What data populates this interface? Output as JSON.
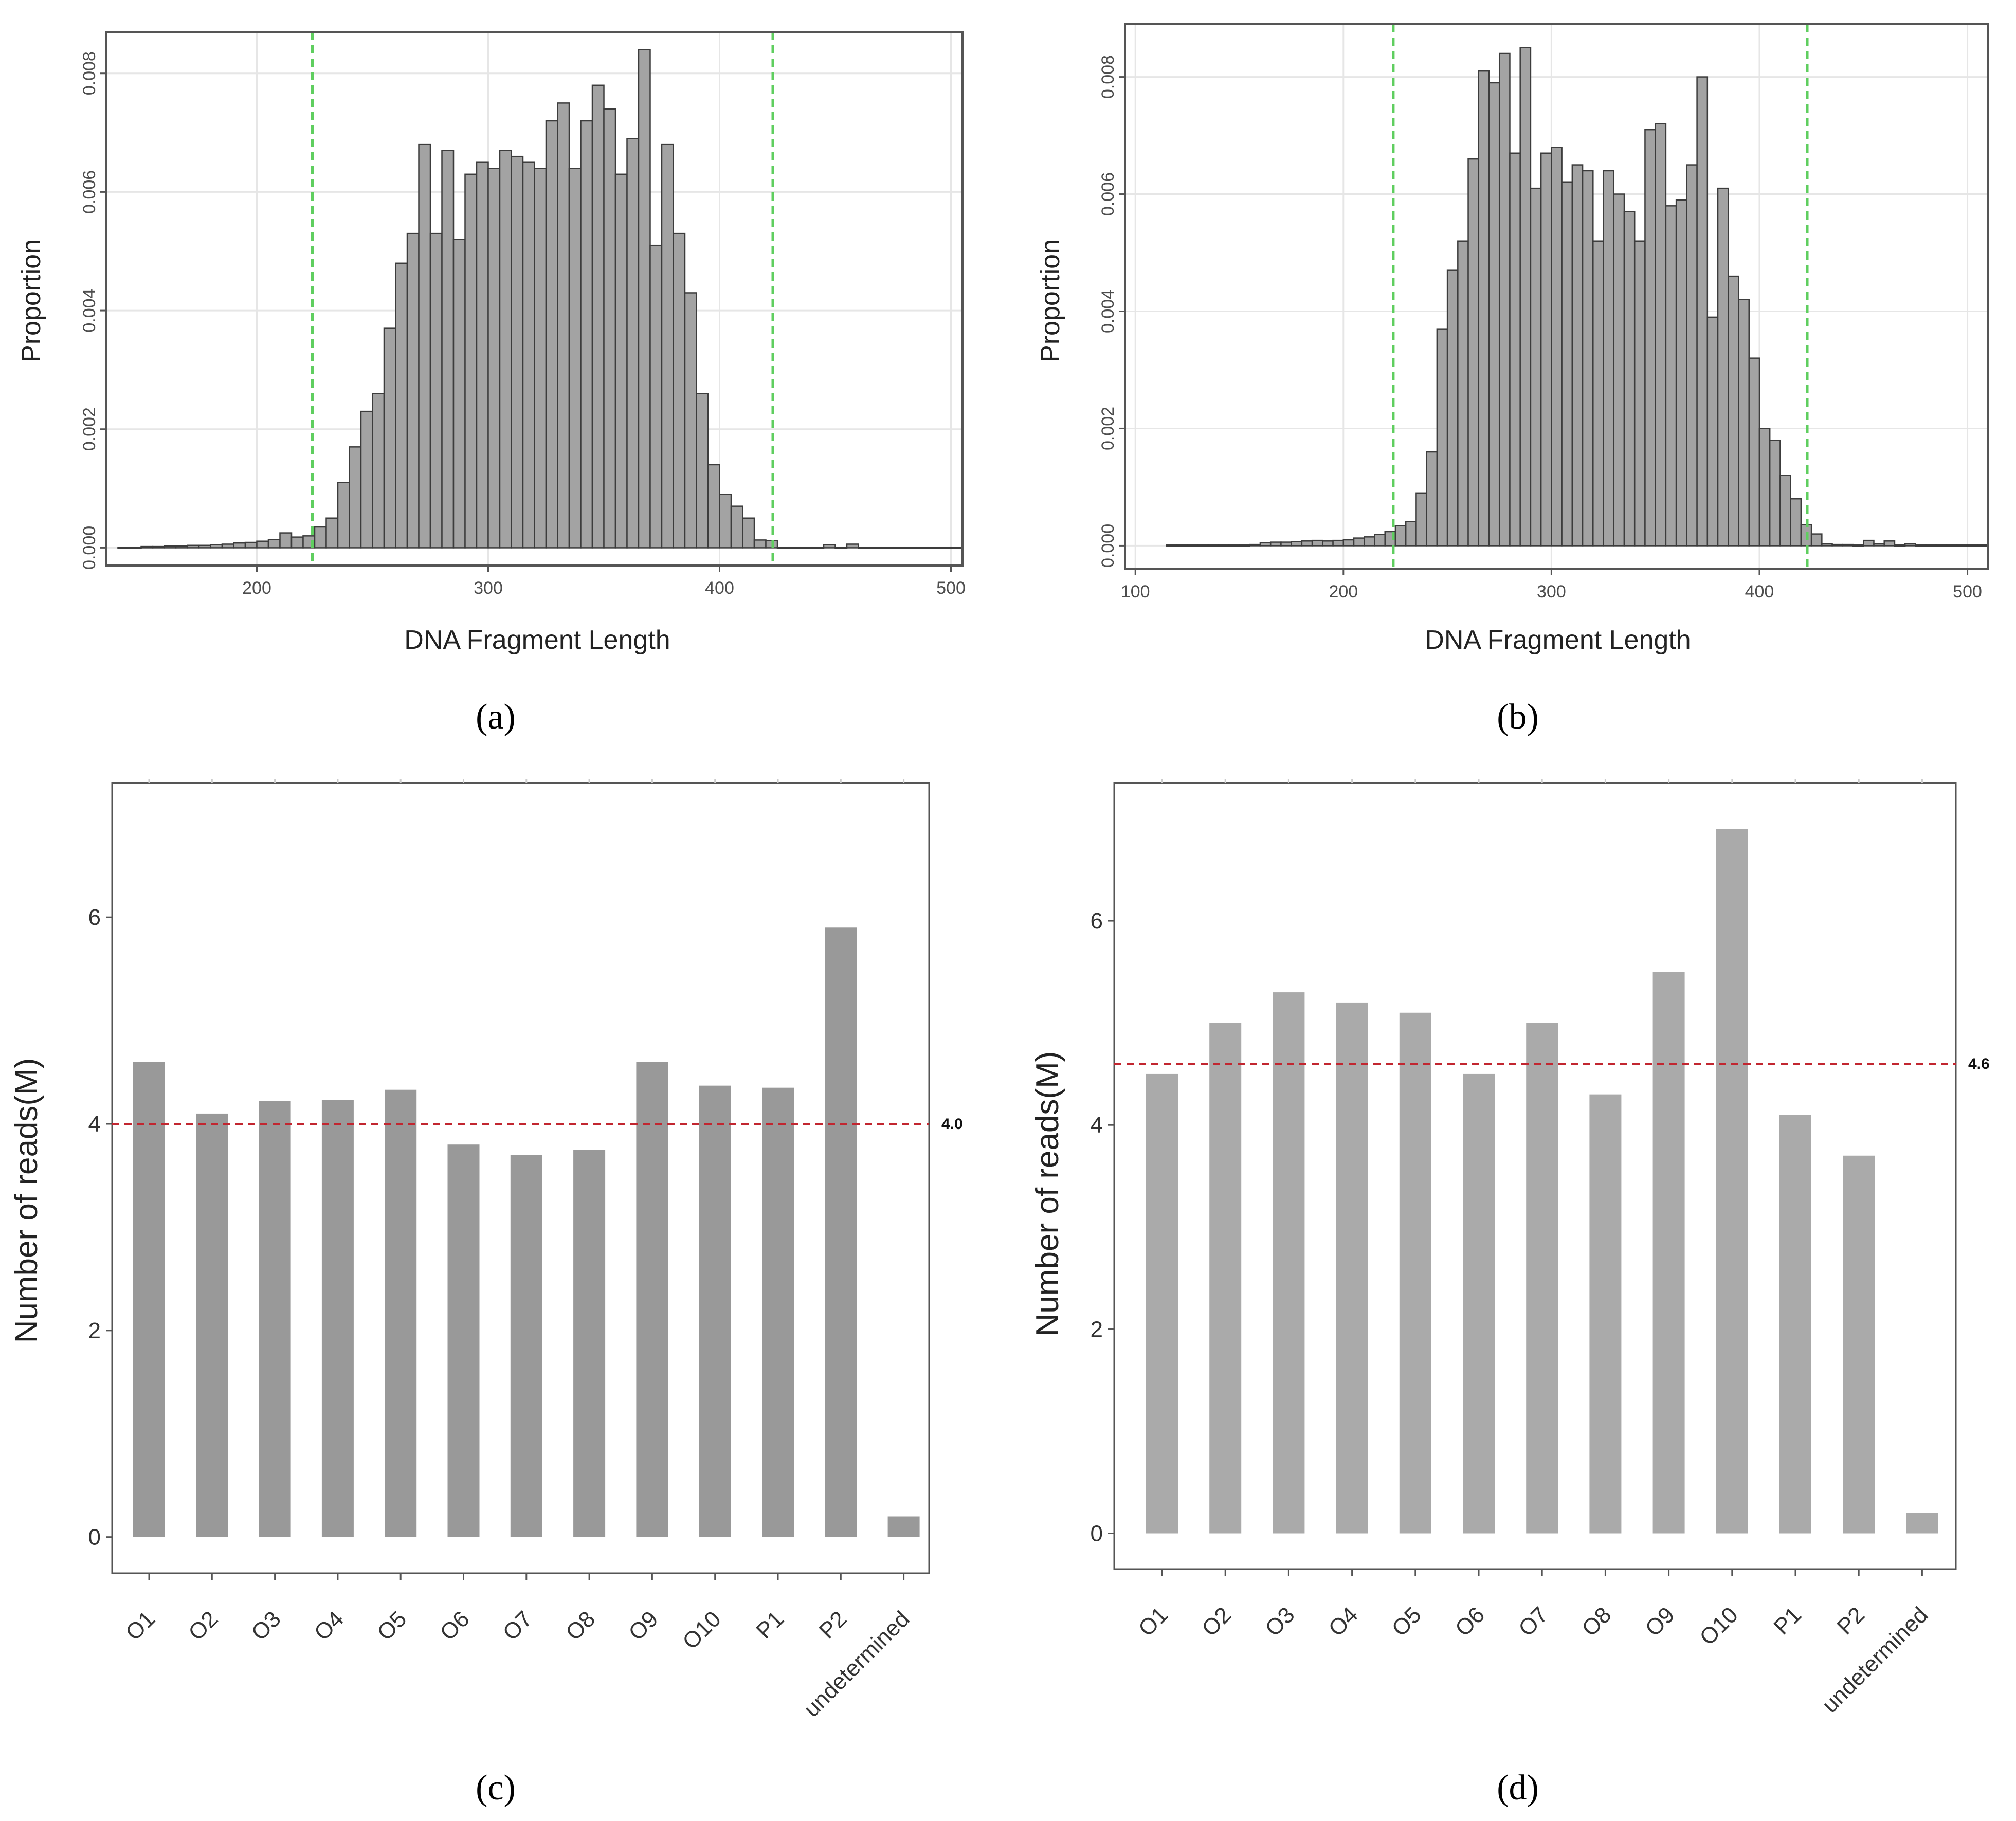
{
  "chart_data": [
    {
      "panel": "a",
      "type": "bar",
      "title": "",
      "subplot_label": "(a)",
      "xlabel": "DNA Fragment Length",
      "ylabel": "Proportion",
      "xlim": [
        135,
        505
      ],
      "ylim": [
        -0.0003,
        0.0087
      ],
      "xticks": [
        200,
        300,
        400,
        500
      ],
      "xtick_labels": [
        "200",
        "300",
        "400",
        "500"
      ],
      "yticks": [
        0.0,
        0.002,
        0.004,
        0.006,
        0.008
      ],
      "ytick_labels": [
        "0.000",
        "0.002",
        "0.004",
        "0.006",
        "0.008"
      ],
      "grid": true,
      "bin_start": 140,
      "bin_width": 5,
      "values": [
        1e-05,
        1e-05,
        2e-05,
        2e-05,
        3e-05,
        3e-05,
        4e-05,
        4e-05,
        5e-05,
        6e-05,
        8e-05,
        9e-05,
        0.00011,
        0.00014,
        0.00025,
        0.00018,
        0.0002,
        0.00035,
        0.0005,
        0.0011,
        0.0017,
        0.0023,
        0.0026,
        0.0037,
        0.0048,
        0.0053,
        0.0068,
        0.0053,
        0.0067,
        0.0052,
        0.0063,
        0.0065,
        0.0064,
        0.0067,
        0.0066,
        0.0065,
        0.0064,
        0.0072,
        0.0075,
        0.0064,
        0.0072,
        0.0078,
        0.0074,
        0.0063,
        0.0069,
        0.0084,
        0.0051,
        0.0068,
        0.0053,
        0.0043,
        0.0026,
        0.0014,
        0.0009,
        0.0007,
        0.0005,
        0.00013,
        0.00012,
        1e-05,
        1e-05,
        1e-05,
        1e-05,
        5e-05,
        1e-05,
        6e-05,
        1e-05,
        1e-05,
        1e-05,
        1e-05,
        1e-05,
        1e-05,
        1e-05,
        1e-05,
        1e-05
      ],
      "reference_lines": [
        224,
        423
      ]
    },
    {
      "panel": "b",
      "type": "bar",
      "title": "",
      "subplot_label": "(b)",
      "xlabel": "DNA Fragment Length",
      "ylabel": "Proportion",
      "xlim": [
        95,
        510
      ],
      "ylim": [
        -0.0004,
        0.0089
      ],
      "xticks": [
        100,
        200,
        300,
        400,
        500
      ],
      "xtick_labels": [
        "100",
        "200",
        "300",
        "400",
        "500"
      ],
      "yticks": [
        0.0,
        0.002,
        0.004,
        0.006,
        0.008
      ],
      "ytick_labels": [
        "0.000",
        "0.002",
        "0.004",
        "0.006",
        "0.008"
      ],
      "grid": true,
      "bin_start": 115,
      "bin_width": 5,
      "values": [
        1e-05,
        1e-05,
        1e-05,
        1e-05,
        1e-05,
        1e-05,
        1e-05,
        1e-05,
        2e-05,
        5e-05,
        6e-05,
        6e-05,
        7e-05,
        8e-05,
        9e-05,
        8e-05,
        9e-05,
        0.0001,
        0.00013,
        0.00015,
        0.00019,
        0.00024,
        0.00034,
        0.00041,
        0.0009,
        0.0016,
        0.0037,
        0.0047,
        0.0052,
        0.0066,
        0.0081,
        0.0079,
        0.0084,
        0.0067,
        0.0085,
        0.0061,
        0.0067,
        0.0068,
        0.0062,
        0.0065,
        0.0064,
        0.0052,
        0.0064,
        0.006,
        0.0057,
        0.0052,
        0.0071,
        0.0072,
        0.0058,
        0.0059,
        0.0065,
        0.008,
        0.0039,
        0.0061,
        0.0046,
        0.0042,
        0.0032,
        0.002,
        0.0018,
        0.0012,
        0.0008,
        0.00036,
        0.0002,
        3e-05,
        2e-05,
        2e-05,
        1e-05,
        9e-05,
        3e-05,
        8e-05,
        1e-05,
        3e-05,
        1e-05,
        1e-05,
        1e-05,
        1e-05,
        1e-05,
        1e-05,
        1e-05
      ],
      "reference_lines": [
        224,
        423
      ]
    },
    {
      "panel": "c",
      "type": "bar",
      "title": "",
      "subplot_label": "(c)",
      "xlabel": "",
      "ylabel": "Number of reads(M)",
      "ylim": [
        -0.35,
        7.3
      ],
      "yticks": [
        0,
        2,
        4,
        6
      ],
      "ytick_labels": [
        "0",
        "2",
        "4",
        "6"
      ],
      "grid": false,
      "categories": [
        "O1",
        "O2",
        "O3",
        "O4",
        "O5",
        "O6",
        "O7",
        "O8",
        "O9",
        "O10",
        "P1",
        "P2",
        "undetermined"
      ],
      "values": [
        4.6,
        4.1,
        4.22,
        4.23,
        4.33,
        3.8,
        3.7,
        3.75,
        4.6,
        4.37,
        4.35,
        5.9,
        0.2
      ],
      "reference_line": {
        "value": 4.0,
        "label": "4.0",
        "color": "#c22630"
      },
      "bar_color": "#999999"
    },
    {
      "panel": "d",
      "type": "bar",
      "title": "",
      "subplot_label": "(d)",
      "xlabel": "",
      "ylabel": "Number of reads(M)",
      "ylim": [
        -0.35,
        7.35
      ],
      "yticks": [
        0,
        2,
        4,
        6
      ],
      "ytick_labels": [
        "0",
        "2",
        "4",
        "6"
      ],
      "grid": false,
      "categories": [
        "O1",
        "O2",
        "O3",
        "O4",
        "O5",
        "O6",
        "O7",
        "O8",
        "O9",
        "O10",
        "P1",
        "P2",
        "undetermined"
      ],
      "values": [
        4.5,
        5.0,
        5.3,
        5.2,
        5.1,
        4.5,
        5.0,
        4.3,
        5.5,
        6.9,
        4.1,
        3.7,
        0.2
      ],
      "reference_line": {
        "value": 4.6,
        "label": "4.6",
        "color": "#c22630"
      },
      "bar_color": "#aaaaaa"
    }
  ],
  "colors": {
    "hist_fill": "#a3a3a3",
    "hist_edge": "#3c3c3c",
    "grid": "#e6e6e6",
    "frame": "#555555",
    "green_line": "#5fce5f",
    "tick_text": "#4d4d4d",
    "dark_text": "#222222"
  }
}
